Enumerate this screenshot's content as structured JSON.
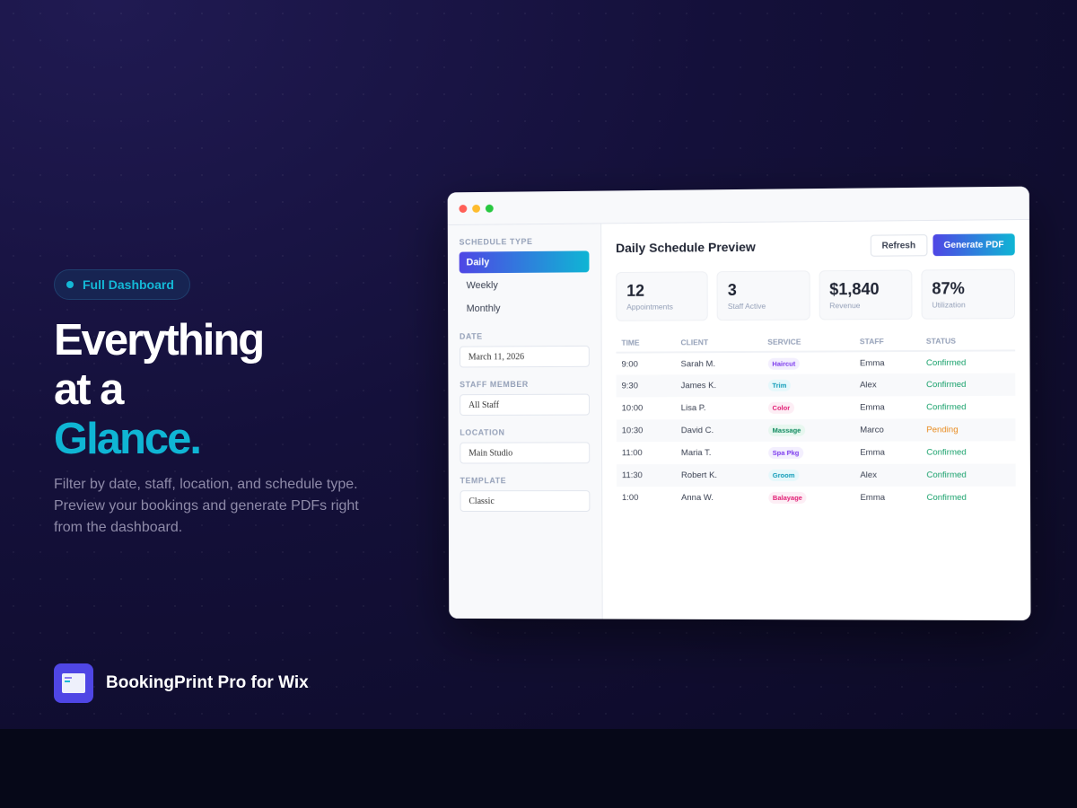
{
  "hero": {
    "badge": "Full Dashboard",
    "headline_line1": "Everything",
    "headline_line2": "at a",
    "headline_accent": "Glance.",
    "description": "Filter by date, staff, location, and schedule type. Preview your bookings and generate PDFs right from the dashboard.",
    "accent_color": "#0fb5d4"
  },
  "brand": {
    "name": "BookingPrint Pro for Wix",
    "icon": "document-window-icon"
  },
  "app": {
    "sidebar": {
      "schedule_type_label": "SCHEDULE TYPE",
      "schedule_types": [
        "Daily",
        "Weekly",
        "Monthly"
      ],
      "selected": "Daily",
      "date_label": "DATE",
      "date_value": "March 11, 2026",
      "staff_label": "STAFF MEMBER",
      "staff_value": "All Staff",
      "location_label": "LOCATION",
      "location_value": "Main Studio",
      "template_label": "TEMPLATE",
      "template_value": "Classic"
    },
    "main": {
      "title": "Daily Schedule Preview",
      "refresh_label": "Refresh",
      "generate_label": "Generate PDF",
      "stats": [
        {
          "value": "12",
          "label": "Appointments"
        },
        {
          "value": "3",
          "label": "Staff Active"
        },
        {
          "value": "$1,840",
          "label": "Revenue"
        },
        {
          "value": "87%",
          "label": "Utilization"
        }
      ],
      "columns": [
        "TIME",
        "CLIENT",
        "SERVICE",
        "STAFF",
        "STATUS"
      ],
      "rows": [
        {
          "time": "9:00",
          "client": "Sarah M.",
          "service": "Haircut",
          "staff": "Emma",
          "status": "Confirmed",
          "svc_color": "#7c3aed",
          "svc_bg": "#f3effe"
        },
        {
          "time": "9:30",
          "client": "James K.",
          "service": "Trim",
          "staff": "Alex",
          "status": "Confirmed",
          "svc_color": "#0e9bb8",
          "svc_bg": "#e6f8fb"
        },
        {
          "time": "10:00",
          "client": "Lisa P.",
          "service": "Color",
          "staff": "Emma",
          "status": "Confirmed",
          "svc_color": "#e11d74",
          "svc_bg": "#fdeef5"
        },
        {
          "time": "10:30",
          "client": "David C.",
          "service": "Massage",
          "staff": "Marco",
          "status": "Pending",
          "svc_color": "#0f8a5f",
          "svc_bg": "#e7f7ef"
        },
        {
          "time": "11:00",
          "client": "Maria T.",
          "service": "Spa Pkg",
          "staff": "Emma",
          "status": "Confirmed",
          "svc_color": "#7c3aed",
          "svc_bg": "#f3effe"
        },
        {
          "time": "11:30",
          "client": "Robert K.",
          "service": "Groom",
          "staff": "Alex",
          "status": "Confirmed",
          "svc_color": "#0e9bb8",
          "svc_bg": "#e6f8fb"
        },
        {
          "time": "1:00",
          "client": "Anna W.",
          "service": "Balayage",
          "staff": "Emma",
          "status": "Confirmed",
          "svc_color": "#e11d74",
          "svc_bg": "#fdeef5"
        }
      ],
      "status_colors": {
        "Confirmed": "#16a06a",
        "Pending": "#e8891a"
      }
    }
  }
}
